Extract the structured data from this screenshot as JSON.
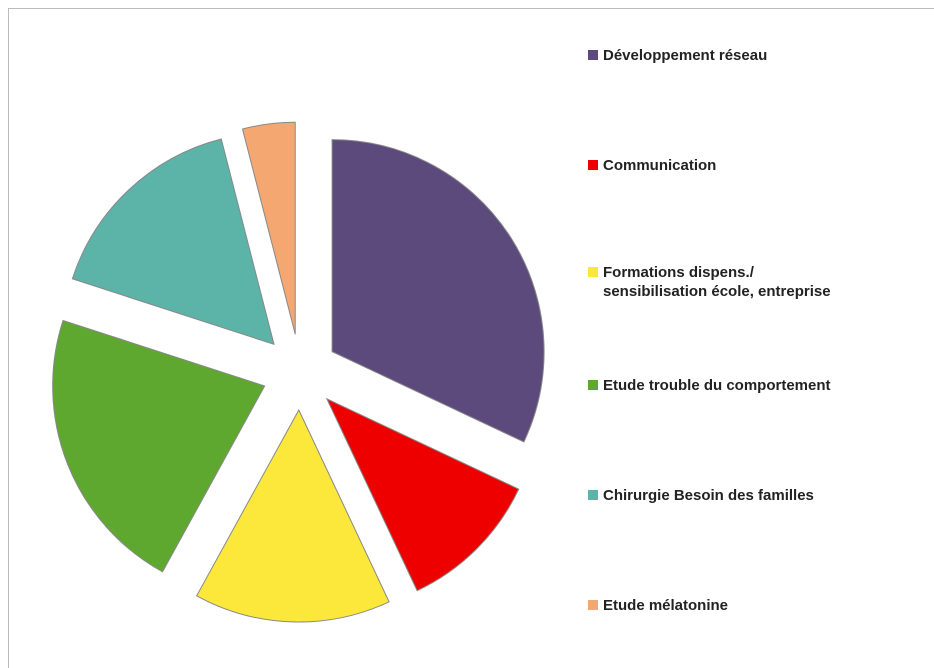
{
  "chart_data": {
    "type": "pie",
    "categories": [
      "Développement réseau",
      "Communication",
      "Formations dispens./\nsensibilisation école, entreprise",
      "Etude trouble du comportement",
      "Chirurgie Besoin des familles",
      "Etude mélatonine"
    ],
    "values": [
      32,
      11,
      15,
      22,
      16,
      4
    ],
    "colors": [
      "#5c4a7d",
      "#ee0000",
      "#fce83a",
      "#5fa82f",
      "#5cb3a8",
      "#f4a771"
    ],
    "legend": "right"
  }
}
